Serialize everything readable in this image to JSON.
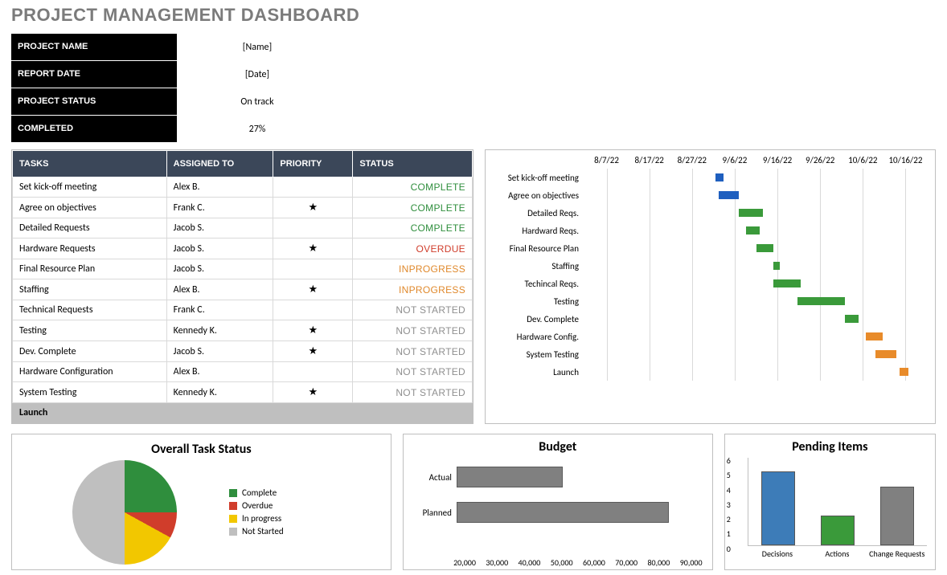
{
  "title": "PROJECT MANAGEMENT DASHBOARD",
  "info": {
    "labels": [
      "PROJECT NAME",
      "REPORT DATE",
      "PROJECT STATUS",
      "COMPLETED"
    ],
    "values": [
      "[Name]",
      "[Date]",
      "On track",
      "27%"
    ]
  },
  "tasks_table": {
    "headers": [
      "TASKS",
      "ASSIGNED TO",
      "PRIORITY",
      "STATUS"
    ],
    "rows": [
      {
        "task": "Set kick-off meeting",
        "assigned": "Alex B.",
        "priority": "",
        "status": "COMPLETE",
        "status_color": "#2f8e3d"
      },
      {
        "task": "Agree on objectives",
        "assigned": "Frank C.",
        "priority": "★",
        "status": "COMPLETE",
        "status_color": "#2f8e3d"
      },
      {
        "task": "Detailed Requests",
        "assigned": "Jacob S.",
        "priority": "",
        "status": "COMPLETE",
        "status_color": "#2f8e3d"
      },
      {
        "task": "Hardware Requests",
        "assigned": "Jacob S.",
        "priority": "★",
        "status": "OVERDUE",
        "status_color": "#d03d2b"
      },
      {
        "task": "Final Resource Plan",
        "assigned": "Jacob S.",
        "priority": "",
        "status": "INPROGRESS",
        "status_color": "#e0892c"
      },
      {
        "task": "Staffing",
        "assigned": "Alex B.",
        "priority": "★",
        "status": "INPROGRESS",
        "status_color": "#e0892c"
      },
      {
        "task": "Technical Requests",
        "assigned": "Frank C.",
        "priority": "",
        "status": "NOT STARTED",
        "status_color": "#8f8f8f"
      },
      {
        "task": "Testing",
        "assigned": "Kennedy K.",
        "priority": "★",
        "status": "NOT STARTED",
        "status_color": "#8f8f8f"
      },
      {
        "task": "Dev. Complete",
        "assigned": "Jacob S.",
        "priority": "★",
        "status": "NOT STARTED",
        "status_color": "#8f8f8f"
      },
      {
        "task": "Hardware Configuration",
        "assigned": "Alex B.",
        "priority": "",
        "status": "NOT STARTED",
        "status_color": "#8f8f8f"
      },
      {
        "task": "System Testing",
        "assigned": "Kennedy K.",
        "priority": "★",
        "status": "NOT STARTED",
        "status_color": "#8f8f8f"
      }
    ],
    "footer_row": "Launch"
  },
  "gantt": {
    "x_labels": [
      "8/7/22",
      "8/17/22",
      "8/27/22",
      "9/6/22",
      "9/16/22",
      "9/26/22",
      "10/6/22",
      "10/16/22"
    ],
    "grid_color": "#d9d9d9",
    "rows": [
      {
        "label": "Set kick-off meeting",
        "start_pct": 38,
        "width_pct": 2.5,
        "color": "#1f5fbf"
      },
      {
        "label": "Agree on objectives",
        "start_pct": 39,
        "width_pct": 6,
        "color": "#1f5fbf"
      },
      {
        "label": "Detailed Reqs.",
        "start_pct": 45,
        "width_pct": 7,
        "color": "#3a9a3a"
      },
      {
        "label": "Hardward Reqs.",
        "start_pct": 47,
        "width_pct": 4,
        "color": "#3a9a3a"
      },
      {
        "label": "Final Resource Plan",
        "start_pct": 50,
        "width_pct": 5,
        "color": "#3a9a3a"
      },
      {
        "label": "Staffing",
        "start_pct": 55,
        "width_pct": 2,
        "color": "#3a9a3a"
      },
      {
        "label": "Techincal Reqs.",
        "start_pct": 55,
        "width_pct": 8,
        "color": "#3a9a3a"
      },
      {
        "label": "Testing",
        "start_pct": 62,
        "width_pct": 14,
        "color": "#3a9a3a"
      },
      {
        "label": "Dev. Complete",
        "start_pct": 76,
        "width_pct": 4,
        "color": "#3a9a3a"
      },
      {
        "label": "Hardware Config.",
        "start_pct": 82,
        "width_pct": 5,
        "color": "#e88b2a"
      },
      {
        "label": "System Testing",
        "start_pct": 85,
        "width_pct": 6,
        "color": "#e88b2a"
      },
      {
        "label": "Launch",
        "start_pct": 92,
        "width_pct": 2.5,
        "color": "#e88b2a"
      }
    ]
  },
  "pie": {
    "title": "Overall Task Status",
    "slices": [
      {
        "label": "Complete",
        "value": 25,
        "color": "#2f8e3d"
      },
      {
        "label": "Overdue",
        "value": 8,
        "color": "#d03d2b"
      },
      {
        "label": "In progress",
        "value": 17,
        "color": "#f2c700"
      },
      {
        "label": "Not Started",
        "value": 50,
        "color": "#bfbfbf"
      }
    ]
  },
  "budget": {
    "title": "Budget",
    "bars": [
      {
        "label": "Actual",
        "value": 50000
      },
      {
        "label": "Planned",
        "value": 80000
      }
    ],
    "x_min": 20000,
    "x_max": 90000,
    "x_step": 10000,
    "bar_color": "#808080",
    "axis_labels": [
      "20,000",
      "30,000",
      "40,000",
      "50,000",
      "60,000",
      "70,000",
      "80,000",
      "90,000"
    ]
  },
  "pending": {
    "title": "Pending Items",
    "y_max": 6,
    "bars": [
      {
        "label": "Decisions",
        "value": 5,
        "color": "#3d7cb8"
      },
      {
        "label": "Actions",
        "value": 2,
        "color": "#3a9a3a"
      },
      {
        "label": "Change Requests",
        "value": 4,
        "color": "#808080"
      }
    ],
    "y_ticks": [
      "6",
      "5",
      "4",
      "3",
      "2",
      "1",
      "0"
    ]
  }
}
